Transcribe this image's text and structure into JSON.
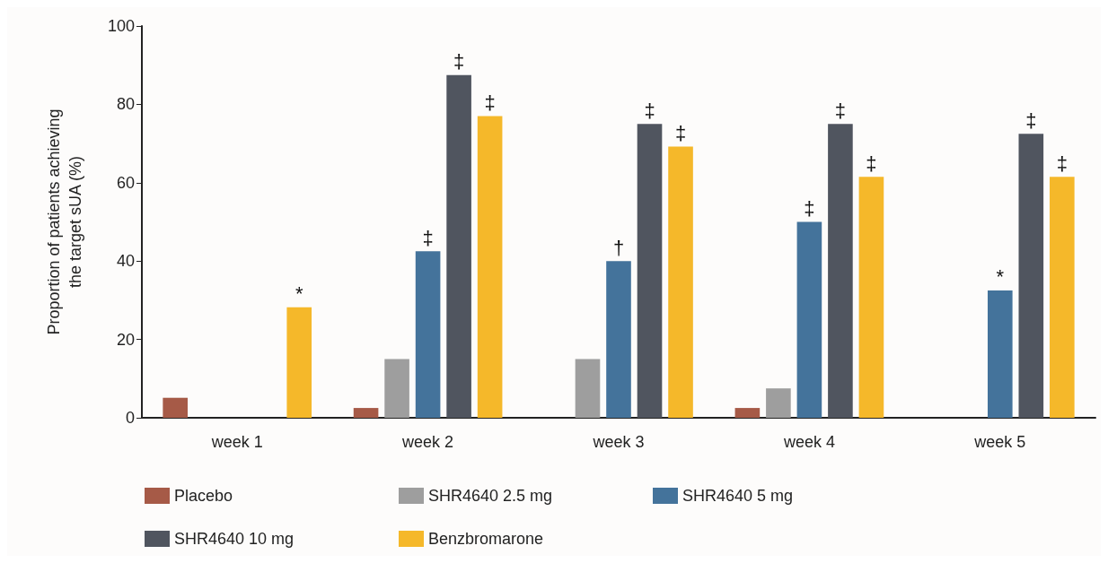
{
  "chart_data": {
    "type": "bar",
    "ylabel": "Proportion of patients achieving\nthe target sUA (%)",
    "categories": [
      "week 1",
      "week 2",
      "week 3",
      "week 4",
      "week 5"
    ],
    "series": [
      {
        "name": "Placebo",
        "color": "#a65a47",
        "values": [
          5.1,
          2.5,
          0,
          2.5,
          0
        ]
      },
      {
        "name": "SHR4640 2.5 mg",
        "color": "#9e9e9e",
        "values": [
          0,
          15,
          15,
          7.5,
          0
        ]
      },
      {
        "name": "SHR4640 5 mg",
        "color": "#44739b",
        "values": [
          0,
          42.5,
          40,
          50,
          32.5
        ],
        "value_labels": [
          null,
          "‡",
          "†",
          "‡",
          "*"
        ]
      },
      {
        "name": "SHR4640 10 mg",
        "color": "#50555f",
        "values": [
          0,
          87.5,
          75,
          75,
          72.5
        ],
        "value_labels": [
          null,
          "‡",
          "‡",
          "‡",
          "‡"
        ]
      },
      {
        "name": "Benzbromarone",
        "color": "#f5b82a",
        "values": [
          28.2,
          77,
          69.2,
          61.5,
          61.5
        ],
        "value_labels": [
          "*",
          "‡",
          "‡",
          "‡",
          "‡"
        ]
      }
    ],
    "ylim": [
      0,
      100
    ],
    "yticks": [
      0,
      20,
      40,
      60,
      80,
      100
    ],
    "grid": false,
    "legend": "bottom"
  }
}
